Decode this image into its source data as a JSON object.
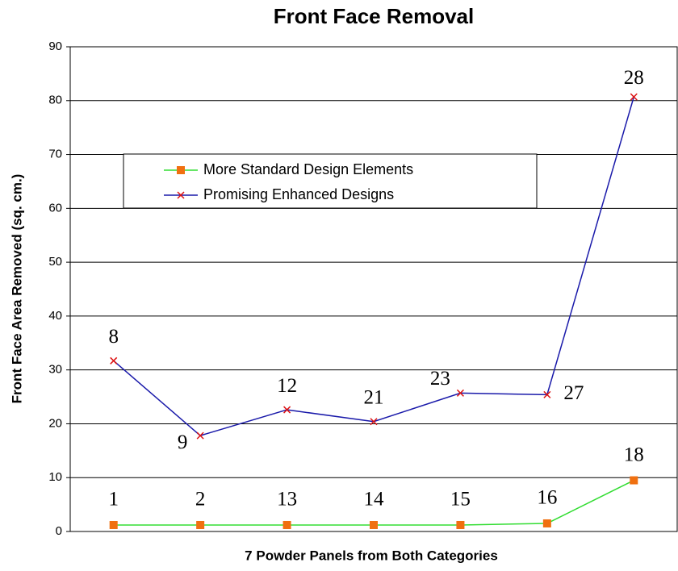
{
  "chart_data": {
    "type": "line",
    "title": "Front Face Removal",
    "x_label": "7 Powder Panels from Both Categories",
    "y_label": "Front Face Area Removed (sq. cm.)",
    "categories": [
      null,
      null,
      null,
      null,
      null,
      null,
      null
    ],
    "ylim": [
      0,
      90
    ],
    "yticks": [
      0,
      10,
      20,
      30,
      40,
      50,
      60,
      70,
      80,
      90
    ],
    "grid": true,
    "legend": "upper left",
    "series": [
      {
        "name": "More Standard Design Elements",
        "color": "#33dd33",
        "marker_color": "#f07010",
        "marker": "square",
        "values": [
          1.2,
          1.2,
          1.2,
          1.2,
          1.2,
          1.5,
          9.5
        ],
        "point_labels": [
          1,
          2,
          13,
          14,
          15,
          16,
          18
        ]
      },
      {
        "name": "Promising Enhanced Designs",
        "color": "#1a1aaa",
        "marker_color": "#dd1111",
        "marker": "x",
        "values": [
          31.7,
          17.8,
          22.6,
          20.4,
          25.7,
          25.4,
          80.7
        ],
        "point_labels": [
          8,
          9,
          12,
          21,
          23,
          27,
          28
        ]
      }
    ]
  }
}
